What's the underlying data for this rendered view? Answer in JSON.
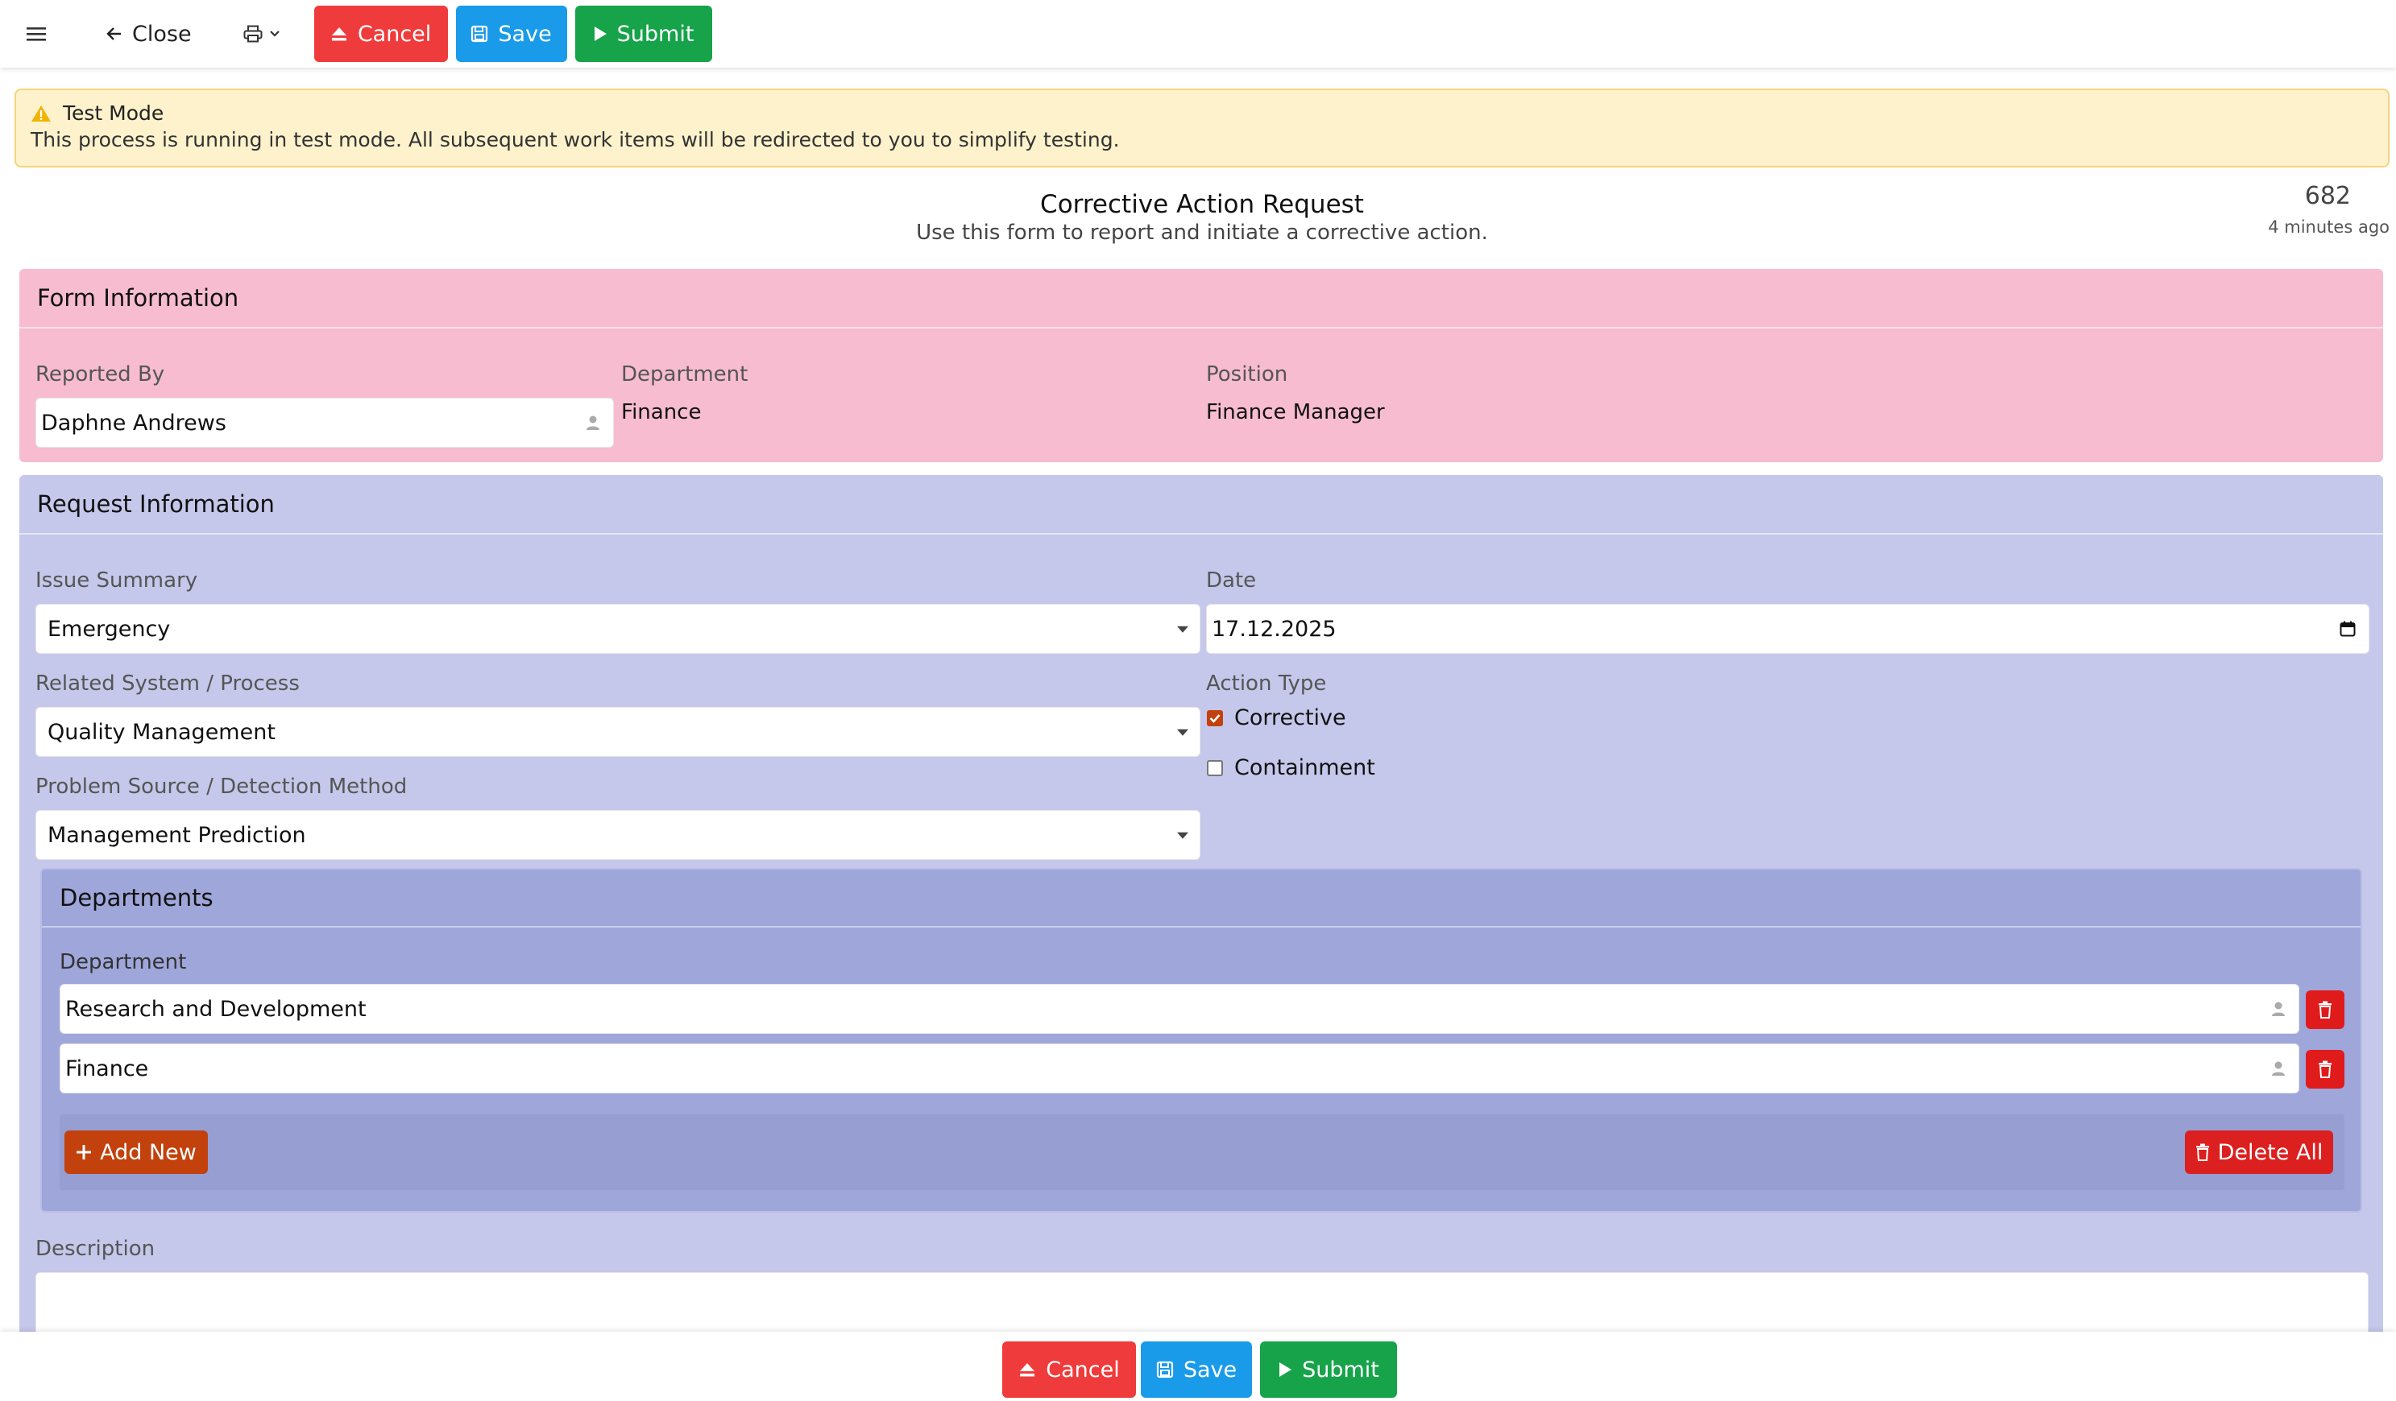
{
  "toolbar": {
    "close_label": "Close",
    "cancel_label": "Cancel",
    "save_label": "Save",
    "submit_label": "Submit"
  },
  "alert": {
    "title": "Test Mode",
    "text": "This process is running in test mode. All subsequent work items will be redirected to you to simplify testing."
  },
  "header": {
    "title": "Corrective Action Request",
    "subtitle": "Use this form to report and initiate a corrective action.",
    "id_number": "682",
    "time_ago": "4 minutes ago"
  },
  "form_info": {
    "title": "Form Information",
    "reported_by_label": "Reported By",
    "reported_by_value": "Daphne Andrews",
    "department_label": "Department",
    "department_value": "Finance",
    "position_label": "Position",
    "position_value": "Finance Manager"
  },
  "request_info": {
    "title": "Request Information",
    "issue_summary_label": "Issue Summary",
    "issue_summary_value": "Emergency",
    "date_label": "Date",
    "date_value": "17.12.2025",
    "related_system_label": "Related System / Process",
    "related_system_value": "Quality Management",
    "action_type_label": "Action Type",
    "action_types": [
      {
        "label": "Corrective",
        "checked": true
      },
      {
        "label": "Containment",
        "checked": false
      }
    ],
    "problem_source_label": "Problem Source / Detection Method",
    "problem_source_value": "Management Prediction",
    "description_label": "Description"
  },
  "departments": {
    "title": "Departments",
    "column_label": "Department",
    "rows": [
      "Research and Development",
      "Finance"
    ],
    "add_new_label": "Add New",
    "delete_all_label": "Delete All"
  },
  "bottom_bar": {
    "cancel_label": "Cancel",
    "save_label": "Save",
    "submit_label": "Submit"
  },
  "colors": {
    "cancel": "#ef3b3b",
    "save": "#1a9be9",
    "submit": "#16a34a",
    "form_info_bg": "#f7bcd0",
    "request_info_bg": "#c5c8ea",
    "departments_bg": "#9fa6da",
    "add_new": "#c2410c",
    "delete": "#dc1f1f"
  }
}
